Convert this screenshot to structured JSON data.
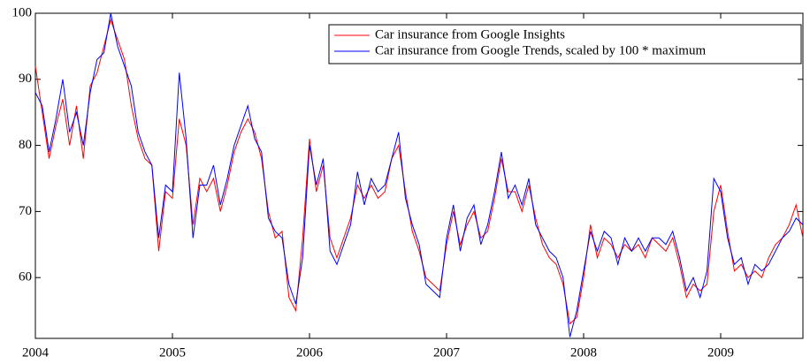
{
  "chart_data": {
    "type": "line",
    "x": [
      2004.0,
      2004.05,
      2004.1,
      2004.15,
      2004.2,
      2004.25,
      2004.3,
      2004.35,
      2004.4,
      2004.45,
      2004.5,
      2004.55,
      2004.6,
      2004.65,
      2004.7,
      2004.75,
      2004.8,
      2004.85,
      2004.9,
      2004.95,
      2005.0,
      2005.05,
      2005.1,
      2005.15,
      2005.2,
      2005.25,
      2005.3,
      2005.35,
      2005.4,
      2005.45,
      2005.5,
      2005.55,
      2005.6,
      2005.65,
      2005.7,
      2005.75,
      2005.8,
      2005.85,
      2005.9,
      2005.95,
      2006.0,
      2006.05,
      2006.1,
      2006.15,
      2006.2,
      2006.25,
      2006.3,
      2006.35,
      2006.4,
      2006.45,
      2006.5,
      2006.55,
      2006.6,
      2006.65,
      2006.7,
      2006.75,
      2006.8,
      2006.85,
      2006.9,
      2006.95,
      2007.0,
      2007.05,
      2007.1,
      2007.15,
      2007.2,
      2007.25,
      2007.3,
      2007.35,
      2007.4,
      2007.45,
      2007.5,
      2007.55,
      2007.6,
      2007.65,
      2007.7,
      2007.75,
      2007.8,
      2007.85,
      2007.9,
      2007.95,
      2008.0,
      2008.05,
      2008.1,
      2008.15,
      2008.2,
      2008.25,
      2008.3,
      2008.35,
      2008.4,
      2008.45,
      2008.5,
      2008.55,
      2008.6,
      2008.65,
      2008.7,
      2008.75,
      2008.8,
      2008.85,
      2008.9,
      2008.95,
      2009.0,
      2009.05,
      2009.1,
      2009.15,
      2009.2,
      2009.25,
      2009.3,
      2009.35,
      2009.4,
      2009.45,
      2009.5,
      2009.55,
      2009.6
    ],
    "series": [
      {
        "name": "Car insurance from Google Insights",
        "color": "#ff0000",
        "values": [
          92,
          85,
          78,
          83,
          87,
          80,
          86,
          78,
          89,
          91,
          95,
          99,
          96,
          93,
          86,
          81,
          78,
          77,
          64,
          73,
          72,
          84,
          80,
          68,
          75,
          73,
          75,
          70,
          74,
          79,
          82,
          84,
          82,
          78,
          70,
          66,
          67,
          57,
          55,
          66,
          81,
          73,
          77,
          66,
          63,
          66,
          69,
          74,
          72,
          74,
          72,
          73,
          78,
          80,
          73,
          67,
          64,
          60,
          59,
          58,
          65,
          70,
          65,
          68,
          70,
          66,
          67,
          72,
          78,
          73,
          73,
          70,
          74,
          69,
          65,
          63,
          62,
          59,
          53,
          54,
          60,
          68,
          63,
          66,
          65,
          63,
          65,
          64,
          65,
          63,
          66,
          65,
          64,
          66,
          62,
          57,
          59,
          58,
          59,
          70,
          74,
          67,
          61,
          62,
          60,
          61,
          60,
          63,
          65,
          66,
          68,
          71,
          66
        ]
      },
      {
        "name": "Car insurance from Google Trends, scaled by 100 * maximum",
        "color": "#0000ff",
        "values": [
          88,
          86,
          79,
          84,
          90,
          82,
          85,
          80,
          88,
          93,
          94,
          100,
          95,
          92,
          89,
          82,
          79,
          77,
          66,
          74,
          73,
          91,
          81,
          66,
          74,
          74,
          77,
          71,
          75,
          80,
          83,
          86,
          81,
          79,
          69,
          67,
          66,
          59,
          56,
          63,
          80,
          74,
          78,
          64,
          62,
          65,
          68,
          76,
          71,
          75,
          73,
          74,
          78,
          82,
          72,
          68,
          65,
          59,
          58,
          57,
          66,
          71,
          64,
          69,
          71,
          65,
          68,
          73,
          79,
          72,
          74,
          71,
          75,
          68,
          66,
          64,
          63,
          60,
          51,
          55,
          61,
          67,
          64,
          67,
          66,
          62,
          66,
          64,
          66,
          64,
          66,
          66,
          65,
          67,
          63,
          58,
          60,
          57,
          61,
          75,
          73,
          66,
          62,
          63,
          59,
          62,
          61,
          62,
          64,
          66,
          67,
          69,
          68
        ]
      }
    ],
    "xlim": [
      2004,
      2009.6
    ],
    "xticks": [
      2004,
      2005,
      2006,
      2007,
      2008,
      2009
    ],
    "ylim": [
      50.8,
      100
    ],
    "yticks": [
      60,
      70,
      80,
      90,
      100
    ],
    "legend": "upper right"
  }
}
